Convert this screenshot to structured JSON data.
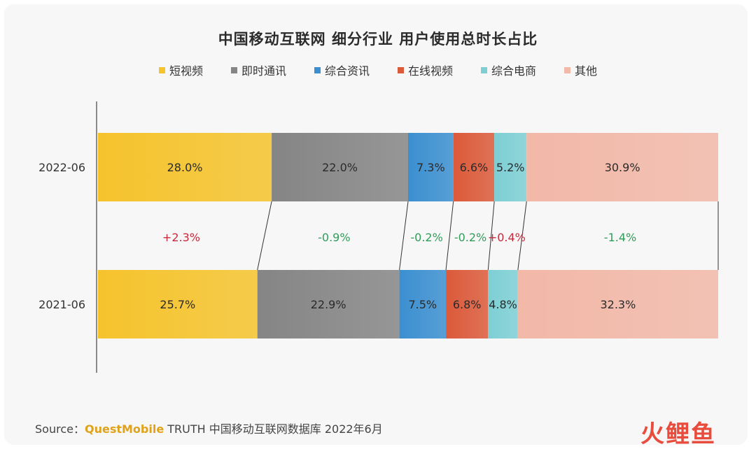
{
  "chart_data": {
    "type": "bar",
    "title": "中国移动互联网 细分行业 用户使用总时长占比",
    "orientation": "horizontal-stacked-100",
    "categories": [
      "2022-06",
      "2021-06"
    ],
    "series": [
      {
        "name": "短视频",
        "color": "#f5c32c",
        "values": [
          28.0,
          25.7
        ],
        "labels": [
          "28.0%",
          "25.7%"
        ],
        "change": "+2.3%"
      },
      {
        "name": "即时通讯",
        "color": "#858585",
        "values": [
          22.0,
          22.9
        ],
        "labels": [
          "22.0%",
          "22.9%"
        ],
        "change": "-0.9%"
      },
      {
        "name": "综合资讯",
        "color": "#3b8fd0",
        "values": [
          7.3,
          7.5
        ],
        "labels": [
          "7.3%",
          "7.5%"
        ],
        "change": "-0.2%"
      },
      {
        "name": "在线视频",
        "color": "#db5a3a",
        "values": [
          6.6,
          6.8
        ],
        "labels": [
          "6.6%",
          "6.8%"
        ],
        "change": "-0.2%"
      },
      {
        "name": "综合电商",
        "color": "#7dcfd4",
        "values": [
          5.2,
          4.8
        ],
        "labels": [
          "5.2%",
          "4.8%"
        ],
        "change": "+0.4%"
      },
      {
        "name": "其他",
        "color": "#f2b8a8",
        "values": [
          30.9,
          32.3
        ],
        "labels": [
          "30.9%",
          "32.3%"
        ],
        "change": "-1.4%"
      }
    ],
    "change_colors": {
      "positive": "#c8283c",
      "negative": "#2e9e5a"
    },
    "legend_position": "top-center"
  },
  "source": {
    "label": "Source：",
    "brand": "QuestMobile",
    "text": " TRUTH 中国移动互联网数据库 2022年6月"
  },
  "watermark": "火鲤鱼"
}
